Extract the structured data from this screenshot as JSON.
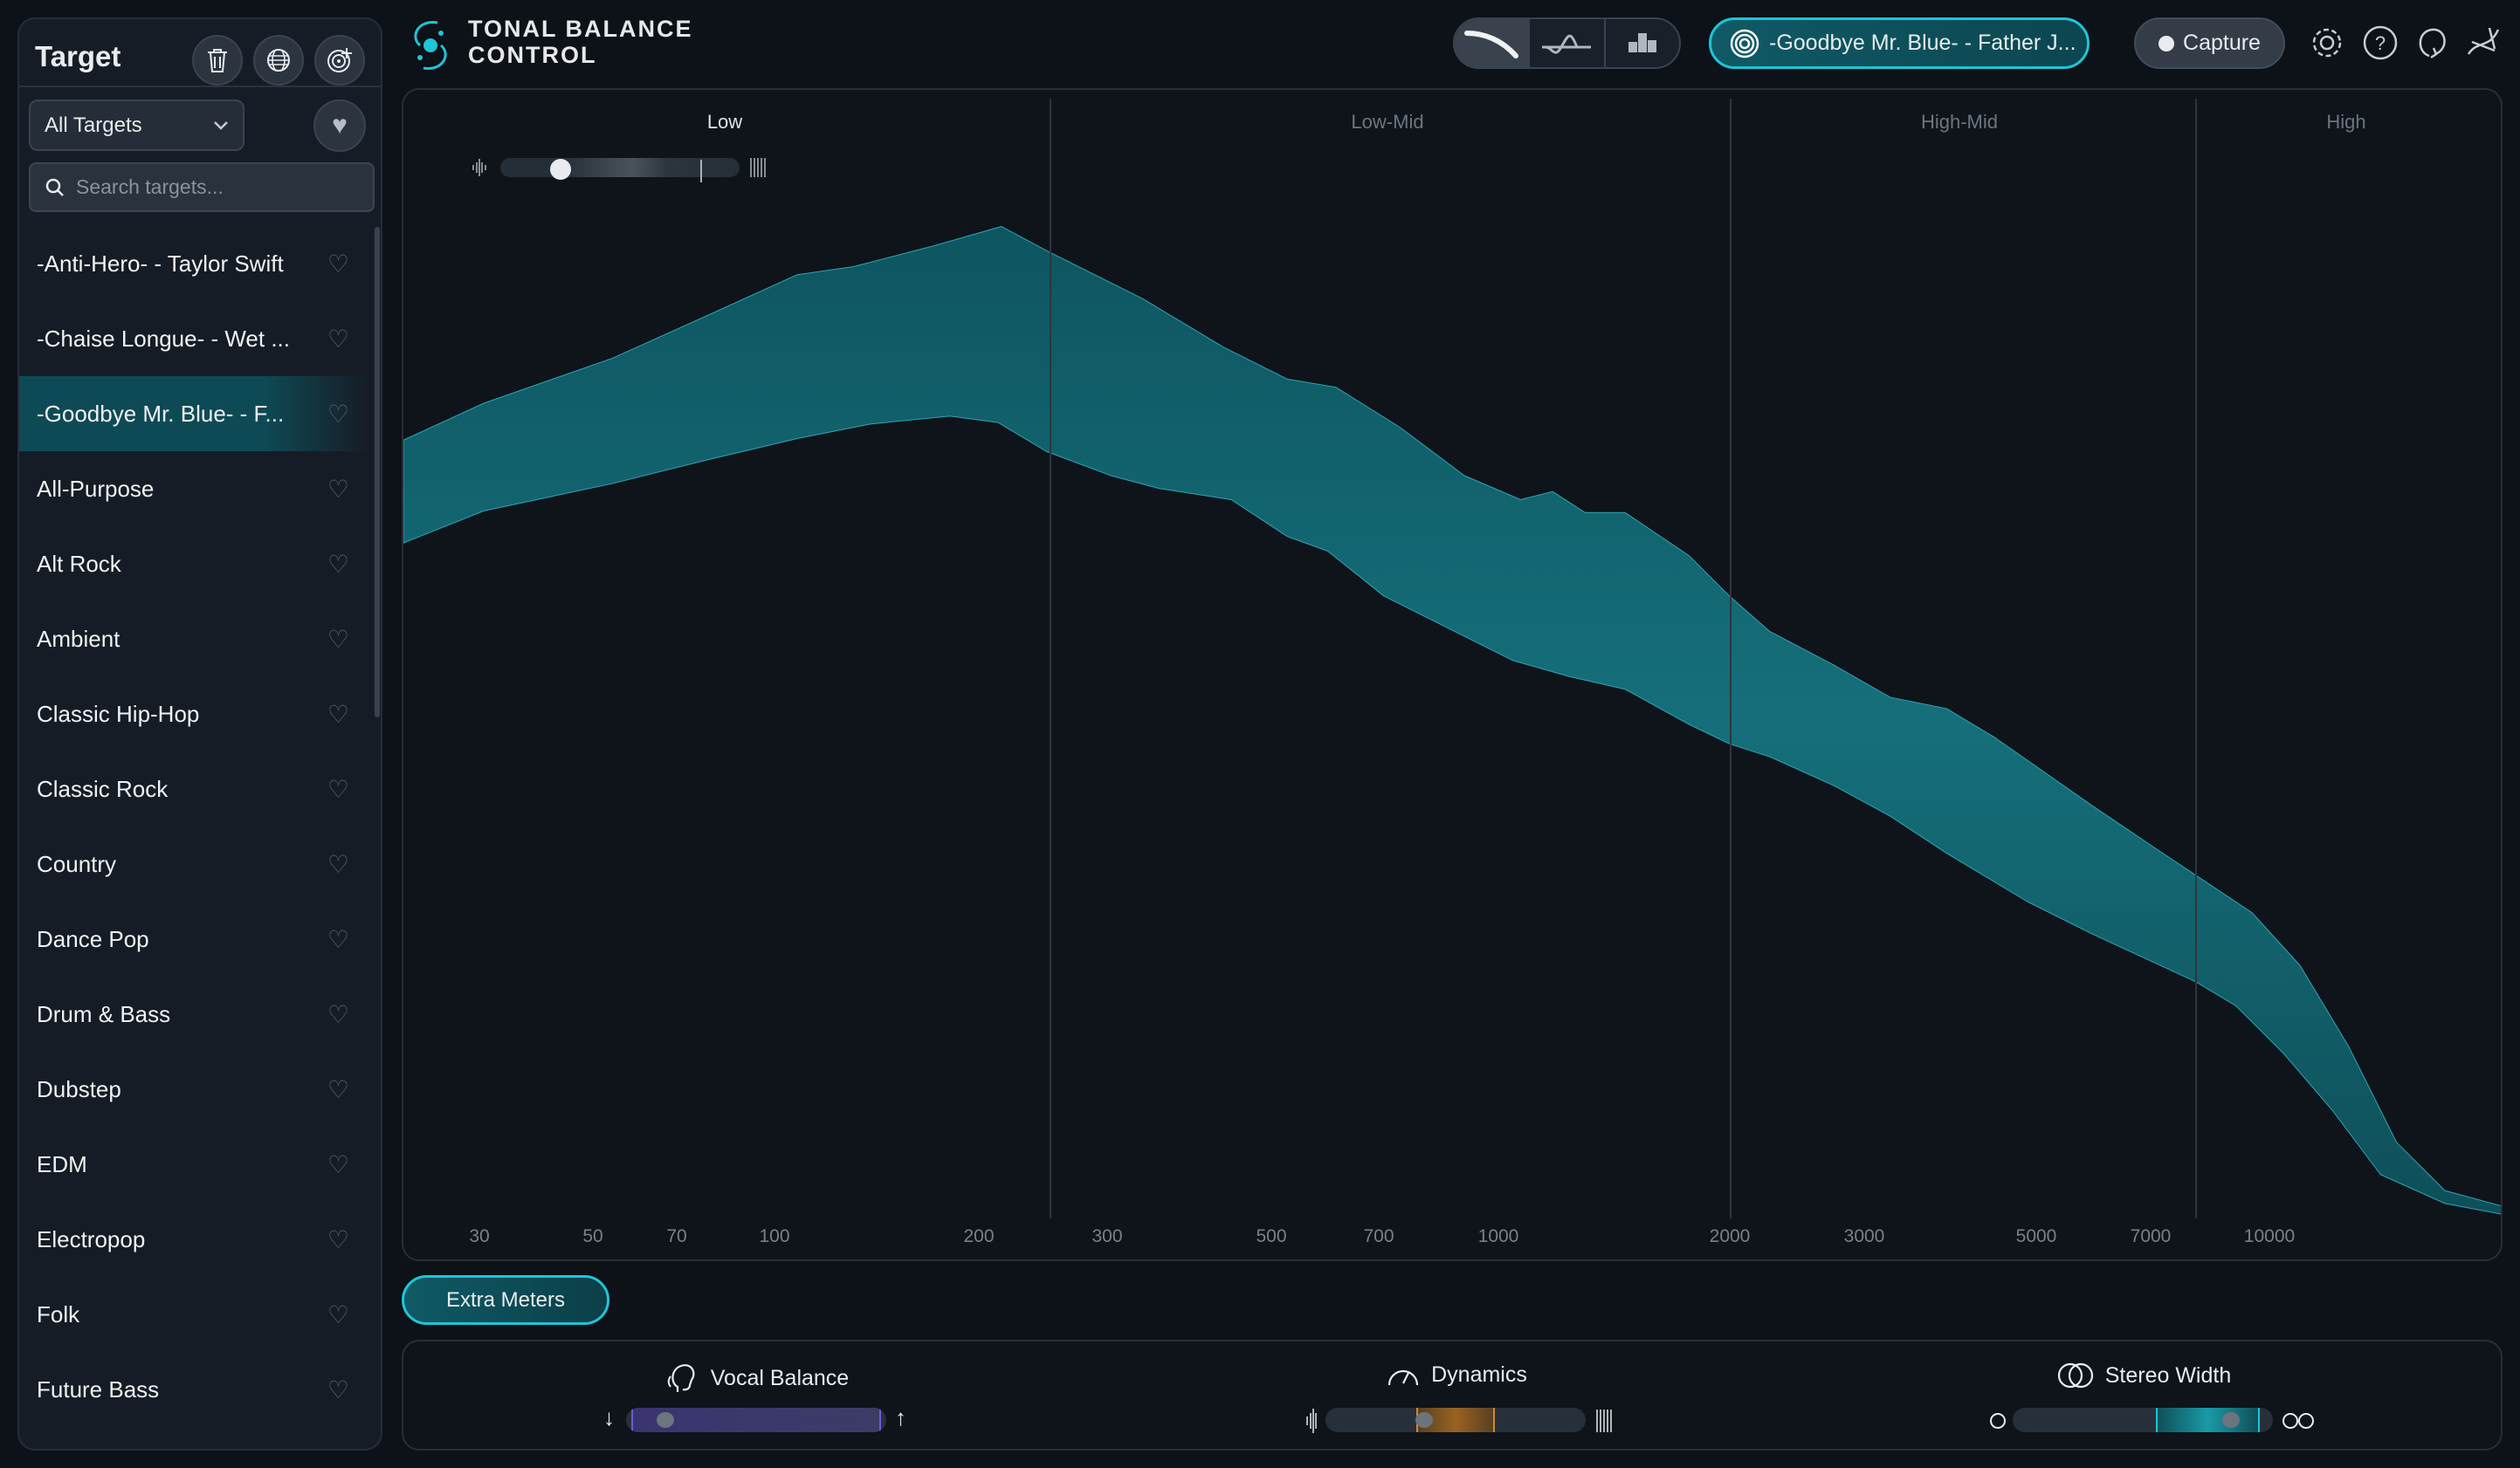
{
  "app": {
    "title_line1": "TONAL BALANCE",
    "title_line2": "CONTROL"
  },
  "sidebar": {
    "title": "Target",
    "filter": "All Targets",
    "search_placeholder": "Search targets...",
    "items": [
      {
        "label": "-Anti-Hero- - Taylor Swift",
        "selected": false
      },
      {
        "label": "-Chaise Longue- - Wet ...",
        "selected": false
      },
      {
        "label": "-Goodbye Mr. Blue- - F...",
        "selected": true
      },
      {
        "label": "All-Purpose",
        "selected": false
      },
      {
        "label": "Alt Rock",
        "selected": false
      },
      {
        "label": "Ambient",
        "selected": false
      },
      {
        "label": "Classic Hip-Hop",
        "selected": false
      },
      {
        "label": "Classic Rock",
        "selected": false
      },
      {
        "label": "Country",
        "selected": false
      },
      {
        "label": "Dance Pop",
        "selected": false
      },
      {
        "label": "Drum & Bass",
        "selected": false
      },
      {
        "label": "Dubstep",
        "selected": false
      },
      {
        "label": "EDM",
        "selected": false
      },
      {
        "label": "Electropop",
        "selected": false
      },
      {
        "label": "Folk",
        "selected": false
      },
      {
        "label": "Future Bass",
        "selected": false
      }
    ]
  },
  "header": {
    "target_name": "-Goodbye Mr. Blue- - Father J...",
    "capture_label": "Capture"
  },
  "chart": {
    "bands": [
      "Low",
      "Low-Mid",
      "High-Mid",
      "High"
    ],
    "freq_labels": [
      "30",
      "50",
      "70",
      "100",
      "200",
      "300",
      "500",
      "700",
      "1000",
      "2000",
      "3000",
      "5000",
      "7000",
      "10000"
    ],
    "tone_slider_value": 0.25,
    "accent": "#1fc4d6"
  },
  "extra_meters_label": "Extra Meters",
  "meters": [
    {
      "label": "Vocal Balance",
      "value": 0.15,
      "color": "#3a3470"
    },
    {
      "label": "Dynamics",
      "value": 0.38,
      "range": [
        0.35,
        0.65
      ],
      "color": "#8a5a22"
    },
    {
      "label": "Stereo Width",
      "value": 0.84,
      "range": [
        0.55,
        0.95
      ],
      "color": "#148894"
    }
  ]
}
